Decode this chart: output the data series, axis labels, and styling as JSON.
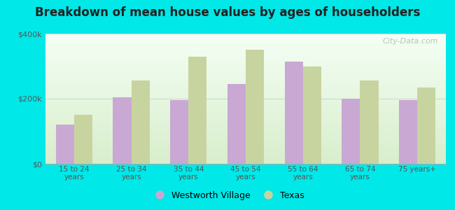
{
  "categories": [
    "15 to 24\nyears",
    "25 to 34\nyears",
    "35 to 44\nyears",
    "45 to 54\nyears",
    "55 to 64\nyears",
    "65 to 74\nyears",
    "75 years+"
  ],
  "westworth_values": [
    120000,
    205000,
    195000,
    245000,
    315000,
    200000,
    195000
  ],
  "texas_values": [
    150000,
    255000,
    330000,
    350000,
    300000,
    255000,
    235000
  ],
  "bar_color_westworth": "#c9a8d4",
  "bar_color_texas": "#c8d4a0",
  "background_color": "#00e8e8",
  "title": "Breakdown of mean house values by ages of householders",
  "title_fontsize": 12,
  "ylabel_ticks": [
    "$0",
    "$200k",
    "$400k"
  ],
  "ytick_values": [
    0,
    200000,
    400000
  ],
  "ylim": [
    0,
    400000
  ],
  "legend_labels": [
    "Westworth Village",
    "Texas"
  ],
  "watermark": "City-Data.com",
  "bar_width": 0.32,
  "grid_color": "#cccccc"
}
